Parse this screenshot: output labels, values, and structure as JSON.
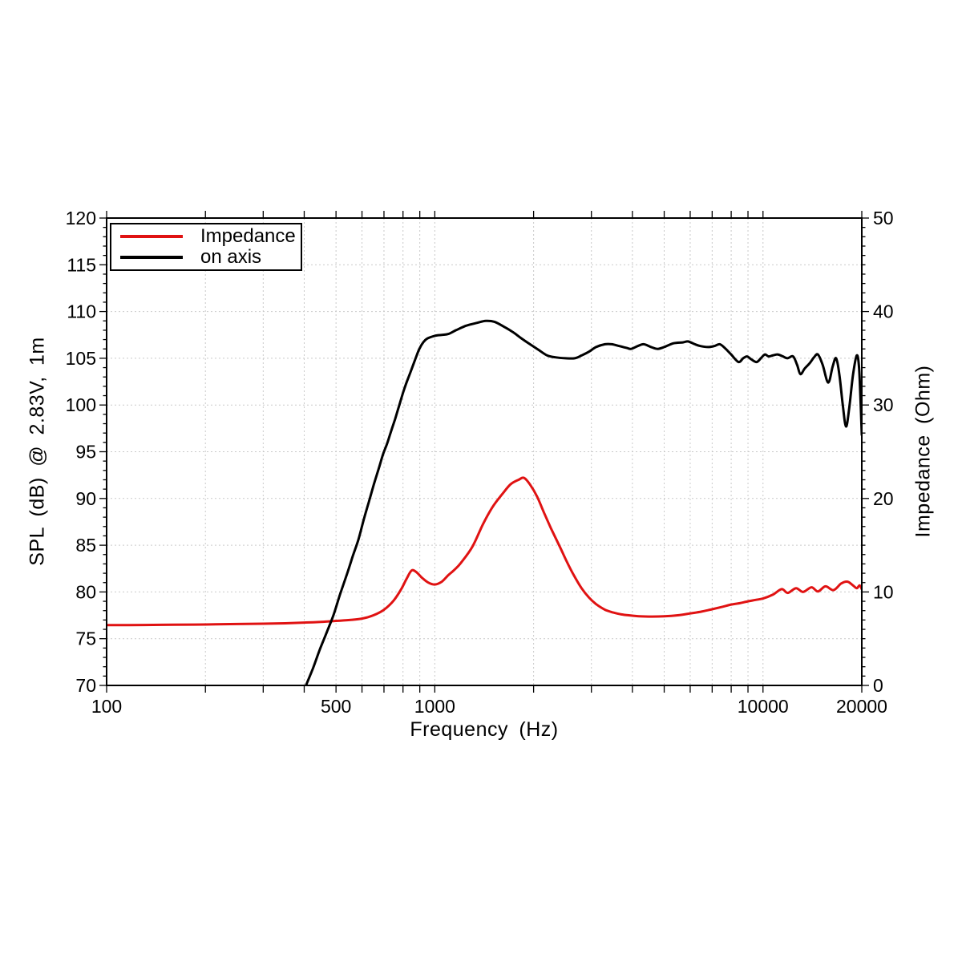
{
  "figure": {
    "axes": {
      "xlabel": "Frequency (Hz)",
      "ylabel_left": "SPL (dB) @ 2.83V, 1m",
      "ylabel_right": "Impedance (Ohm)"
    },
    "legend": {
      "items": [
        {
          "label": "Impedance",
          "color": "#e01212"
        },
        {
          "label": "on axis",
          "color": "#000000"
        }
      ]
    },
    "colors": {
      "impedance_curve": "#e01212",
      "on_axis_curve": "#000000",
      "grid": "#c9c9c9",
      "frame": "#000000"
    }
  },
  "chart_data": {
    "type": "line",
    "title": "",
    "xlabel": "Frequency (Hz)",
    "ylabel_left": "SPL (dB) @ 2.83V, 1m",
    "ylabel_right": "Impedance (Ohm)",
    "x_scale": "log",
    "xlim": [
      100,
      20000
    ],
    "ylim_left": [
      70,
      120
    ],
    "ylim_right": [
      0,
      50
    ],
    "grid": {
      "style": "dashed",
      "vertical_hz": [
        200,
        300,
        400,
        500,
        600,
        700,
        800,
        900,
        1000,
        2000,
        3000,
        4000,
        5000,
        6000,
        7000,
        8000,
        9000,
        10000
      ],
      "horizontal_spl": [
        75,
        80,
        85,
        90,
        95,
        100,
        105,
        110,
        115
      ]
    },
    "x_ticks": [
      100,
      200,
      300,
      400,
      500,
      600,
      700,
      800,
      900,
      1000,
      2000,
      3000,
      4000,
      5000,
      6000,
      7000,
      8000,
      9000,
      10000,
      20000
    ],
    "x_tick_labels": [
      {
        "value": 100,
        "label": "100"
      },
      {
        "value": 500,
        "label": "500"
      },
      {
        "value": 1000,
        "label": "1000"
      },
      {
        "value": 10000,
        "label": "10000"
      },
      {
        "value": 20000,
        "label": "20000"
      }
    ],
    "y_left_tick_labels": [
      70,
      75,
      80,
      85,
      90,
      95,
      100,
      105,
      110,
      115,
      120
    ],
    "y_left_minor_step": 1,
    "y_right_tick_labels": [
      0,
      10,
      20,
      30,
      40,
      50
    ],
    "y_right_minor_step": 1,
    "legend_position": "top-left",
    "series": [
      {
        "name": "Impedance",
        "axis": "right",
        "unit": "Ohm",
        "color": "#e01212",
        "points": [
          [
            100,
            6.45
          ],
          [
            130,
            6.47
          ],
          [
            160,
            6.5
          ],
          [
            200,
            6.52
          ],
          [
            250,
            6.57
          ],
          [
            300,
            6.6
          ],
          [
            350,
            6.65
          ],
          [
            400,
            6.72
          ],
          [
            450,
            6.8
          ],
          [
            500,
            6.9
          ],
          [
            550,
            7.0
          ],
          [
            600,
            7.15
          ],
          [
            650,
            7.5
          ],
          [
            700,
            8.1
          ],
          [
            750,
            9.1
          ],
          [
            790,
            10.3
          ],
          [
            820,
            11.4
          ],
          [
            850,
            12.3
          ],
          [
            880,
            12.1
          ],
          [
            915,
            11.5
          ],
          [
            955,
            11.0
          ],
          [
            1000,
            10.8
          ],
          [
            1050,
            11.1
          ],
          [
            1100,
            11.8
          ],
          [
            1150,
            12.4
          ],
          [
            1200,
            13.1
          ],
          [
            1300,
            14.8
          ],
          [
            1400,
            17.2
          ],
          [
            1500,
            19.1
          ],
          [
            1600,
            20.4
          ],
          [
            1700,
            21.5
          ],
          [
            1800,
            22.0
          ],
          [
            1870,
            22.2
          ],
          [
            1950,
            21.5
          ],
          [
            2050,
            20.2
          ],
          [
            2150,
            18.5
          ],
          [
            2260,
            16.8
          ],
          [
            2400,
            14.9
          ],
          [
            2520,
            13.3
          ],
          [
            2650,
            11.8
          ],
          [
            2800,
            10.4
          ],
          [
            2950,
            9.4
          ],
          [
            3100,
            8.7
          ],
          [
            3300,
            8.1
          ],
          [
            3500,
            7.8
          ],
          [
            3700,
            7.6
          ],
          [
            3900,
            7.5
          ],
          [
            4200,
            7.4
          ],
          [
            4600,
            7.37
          ],
          [
            5000,
            7.4
          ],
          [
            5500,
            7.5
          ],
          [
            6000,
            7.7
          ],
          [
            6500,
            7.9
          ],
          [
            7000,
            8.15
          ],
          [
            7500,
            8.4
          ],
          [
            8000,
            8.65
          ],
          [
            8500,
            8.8
          ],
          [
            9000,
            9.0
          ],
          [
            9500,
            9.15
          ],
          [
            10000,
            9.3
          ],
          [
            10700,
            9.7
          ],
          [
            11400,
            10.3
          ],
          [
            11900,
            9.9
          ],
          [
            12600,
            10.4
          ],
          [
            13250,
            10.0
          ],
          [
            14050,
            10.5
          ],
          [
            14700,
            10.05
          ],
          [
            15500,
            10.6
          ],
          [
            16400,
            10.2
          ],
          [
            17300,
            10.9
          ],
          [
            18100,
            11.1
          ],
          [
            18800,
            10.7
          ],
          [
            19300,
            10.4
          ],
          [
            19700,
            10.7
          ],
          [
            20000,
            10.3
          ]
        ]
      },
      {
        "name": "on axis",
        "axis": "left",
        "unit": "dB",
        "color": "#000000",
        "points": [
          [
            405,
            70.0
          ],
          [
            425,
            71.8
          ],
          [
            447,
            73.9
          ],
          [
            470,
            75.8
          ],
          [
            492,
            77.6
          ],
          [
            515,
            79.8
          ],
          [
            540,
            81.9
          ],
          [
            562,
            83.8
          ],
          [
            585,
            85.6
          ],
          [
            607,
            87.7
          ],
          [
            629,
            89.6
          ],
          [
            652,
            91.5
          ],
          [
            676,
            93.3
          ],
          [
            695,
            94.7
          ],
          [
            716,
            95.9
          ],
          [
            736,
            97.2
          ],
          [
            757,
            98.5
          ],
          [
            778,
            99.9
          ],
          [
            800,
            101.3
          ],
          [
            820,
            102.4
          ],
          [
            843,
            103.5
          ],
          [
            872,
            104.9
          ],
          [
            897,
            106.0
          ],
          [
            922,
            106.7
          ],
          [
            947,
            107.1
          ],
          [
            1000,
            107.4
          ],
          [
            1050,
            107.5
          ],
          [
            1100,
            107.6
          ],
          [
            1160,
            108.0
          ],
          [
            1250,
            108.5
          ],
          [
            1350,
            108.8
          ],
          [
            1430,
            109.0
          ],
          [
            1520,
            108.9
          ],
          [
            1620,
            108.4
          ],
          [
            1730,
            107.8
          ],
          [
            1840,
            107.1
          ],
          [
            1950,
            106.5
          ],
          [
            2070,
            105.9
          ],
          [
            2200,
            105.3
          ],
          [
            2330,
            105.1
          ],
          [
            2500,
            105.0
          ],
          [
            2670,
            105.0
          ],
          [
            2800,
            105.3
          ],
          [
            2950,
            105.7
          ],
          [
            3100,
            106.2
          ],
          [
            3300,
            106.5
          ],
          [
            3460,
            106.5
          ],
          [
            3650,
            106.3
          ],
          [
            3850,
            106.1
          ],
          [
            3960,
            106.0
          ],
          [
            4150,
            106.3
          ],
          [
            4330,
            106.5
          ],
          [
            4560,
            106.2
          ],
          [
            4770,
            106.0
          ],
          [
            5000,
            106.2
          ],
          [
            5340,
            106.6
          ],
          [
            5700,
            106.7
          ],
          [
            5910,
            106.8
          ],
          [
            6200,
            106.5
          ],
          [
            6450,
            106.3
          ],
          [
            6800,
            106.2
          ],
          [
            7100,
            106.3
          ],
          [
            7390,
            106.5
          ],
          [
            7700,
            106.0
          ],
          [
            8000,
            105.4
          ],
          [
            8420,
            104.6
          ],
          [
            8700,
            105.0
          ],
          [
            8940,
            105.2
          ],
          [
            9200,
            104.9
          ],
          [
            9560,
            104.6
          ],
          [
            9850,
            105.0
          ],
          [
            10130,
            105.4
          ],
          [
            10400,
            105.2
          ],
          [
            10700,
            105.3
          ],
          [
            11100,
            105.4
          ],
          [
            11500,
            105.2
          ],
          [
            11870,
            105.0
          ],
          [
            12350,
            105.2
          ],
          [
            12700,
            104.3
          ],
          [
            13000,
            103.3
          ],
          [
            13400,
            103.9
          ],
          [
            13900,
            104.5
          ],
          [
            14300,
            105.1
          ],
          [
            14700,
            105.4
          ],
          [
            15200,
            104.3
          ],
          [
            15800,
            102.4
          ],
          [
            16300,
            104.1
          ],
          [
            16700,
            105.0
          ],
          [
            17100,
            103.2
          ],
          [
            17500,
            100.0
          ],
          [
            17900,
            97.7
          ],
          [
            18300,
            99.6
          ],
          [
            18800,
            103.2
          ],
          [
            19300,
            105.3
          ],
          [
            19600,
            104.2
          ],
          [
            19800,
            101.0
          ],
          [
            20000,
            96.8
          ]
        ]
      }
    ]
  }
}
